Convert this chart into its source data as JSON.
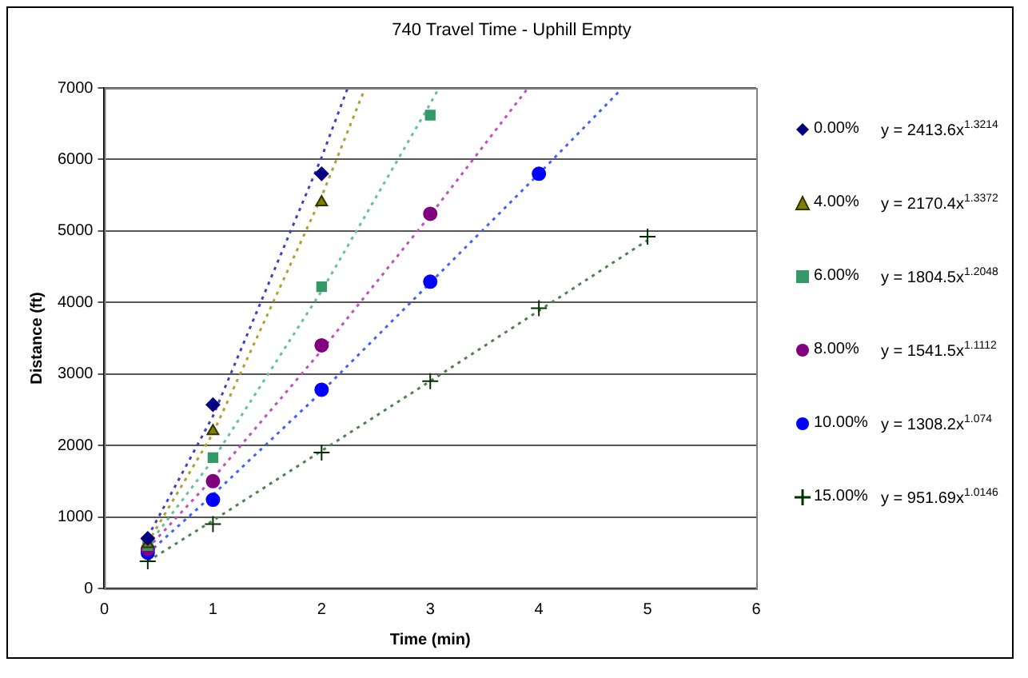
{
  "chart_data": {
    "type": "scatter",
    "title": "740 Travel Time - Uphill Empty",
    "xlabel": "Time (min)",
    "ylabel": "Distance (ft)",
    "xlim": [
      0,
      6
    ],
    "xticks": [
      0,
      1,
      2,
      3,
      4,
      5,
      6
    ],
    "ylim": [
      0,
      7000
    ],
    "yticks": [
      0,
      1000,
      2000,
      3000,
      4000,
      5000,
      6000,
      7000
    ],
    "grid": "y",
    "legend": "right",
    "annotations": [
      "y = 2413.6x$^{1.3214}$",
      "y = 2170.4x$^{1.3372}$",
      "y = 1804.5x$^{1.2048}$",
      "y = 1541.5x$^{1.1112}$",
      "y = 1308.2x$^{1.074}$",
      "y = 951.69x$^{1.0146}$"
    ],
    "series": [
      {
        "name": "0.00%",
        "color": "#000080",
        "marker": "diamond",
        "x": [
          0.4,
          1,
          2
        ],
        "values": [
          700,
          2570,
          5800
        ]
      },
      {
        "name": "4.00%",
        "color": "#808000",
        "marker": "triangle",
        "x": [
          0.4,
          1,
          2
        ],
        "values": [
          620,
          2200,
          5400
        ]
      },
      {
        "name": "6.00%",
        "color": "#339966",
        "marker": "square",
        "x": [
          0.4,
          1,
          2,
          3
        ],
        "values": [
          600,
          1830,
          4220,
          6620
        ]
      },
      {
        "name": "8.00%",
        "color": "#800080",
        "marker": "circle",
        "x": [
          0.4,
          1,
          2,
          3
        ],
        "values": [
          550,
          1500,
          3400,
          5240
        ]
      },
      {
        "name": "10.00%",
        "color": "#0000ff",
        "marker": "circle",
        "x": [
          0.4,
          1,
          2,
          3,
          4
        ],
        "values": [
          500,
          1240,
          2780,
          4290,
          5800
        ]
      },
      {
        "name": "15.00%",
        "color": "#003300",
        "marker": "cross",
        "x": [
          0.4,
          1,
          2,
          3,
          4,
          5
        ],
        "values": [
          380,
          900,
          1900,
          2900,
          3920,
          4920
        ]
      },
      {
        "type": "line",
        "color": "#4040c0",
        "marker": "none",
        "line_style": "dotted",
        "x": [
          0.4,
          1,
          2,
          2.24
        ],
        "values": [
          720,
          2410,
          6030,
          7000
        ]
      },
      {
        "type": "line",
        "color": "#b0a030",
        "marker": "none",
        "line_style": "dotted",
        "x": [
          0.4,
          1,
          2,
          2.4
        ],
        "values": [
          640,
          2170,
          5480,
          7000
        ]
      },
      {
        "type": "line",
        "color": "#66c0a0",
        "marker": "none",
        "line_style": "dotted",
        "x": [
          0.4,
          1,
          2,
          3,
          3.08
        ],
        "values": [
          600,
          1800,
          4160,
          6780,
          7000
        ]
      },
      {
        "type": "line",
        "color": "#c050c0",
        "marker": "none",
        "line_style": "dotted",
        "x": [
          0.4,
          1,
          2,
          3,
          3.9
        ],
        "values": [
          560,
          1540,
          3330,
          5220,
          7000
        ]
      },
      {
        "type": "line",
        "color": "#4060ff",
        "marker": "none",
        "line_style": "dotted",
        "x": [
          0.4,
          1,
          2,
          4,
          4.77
        ],
        "values": [
          490,
          1310,
          2750,
          5800,
          7000
        ]
      },
      {
        "type": "line",
        "color": "#508050",
        "marker": "none",
        "line_style": "dotted",
        "x": [
          0.4,
          1,
          3,
          5
        ],
        "values": [
          380,
          950,
          2900,
          4870
        ]
      }
    ]
  }
}
